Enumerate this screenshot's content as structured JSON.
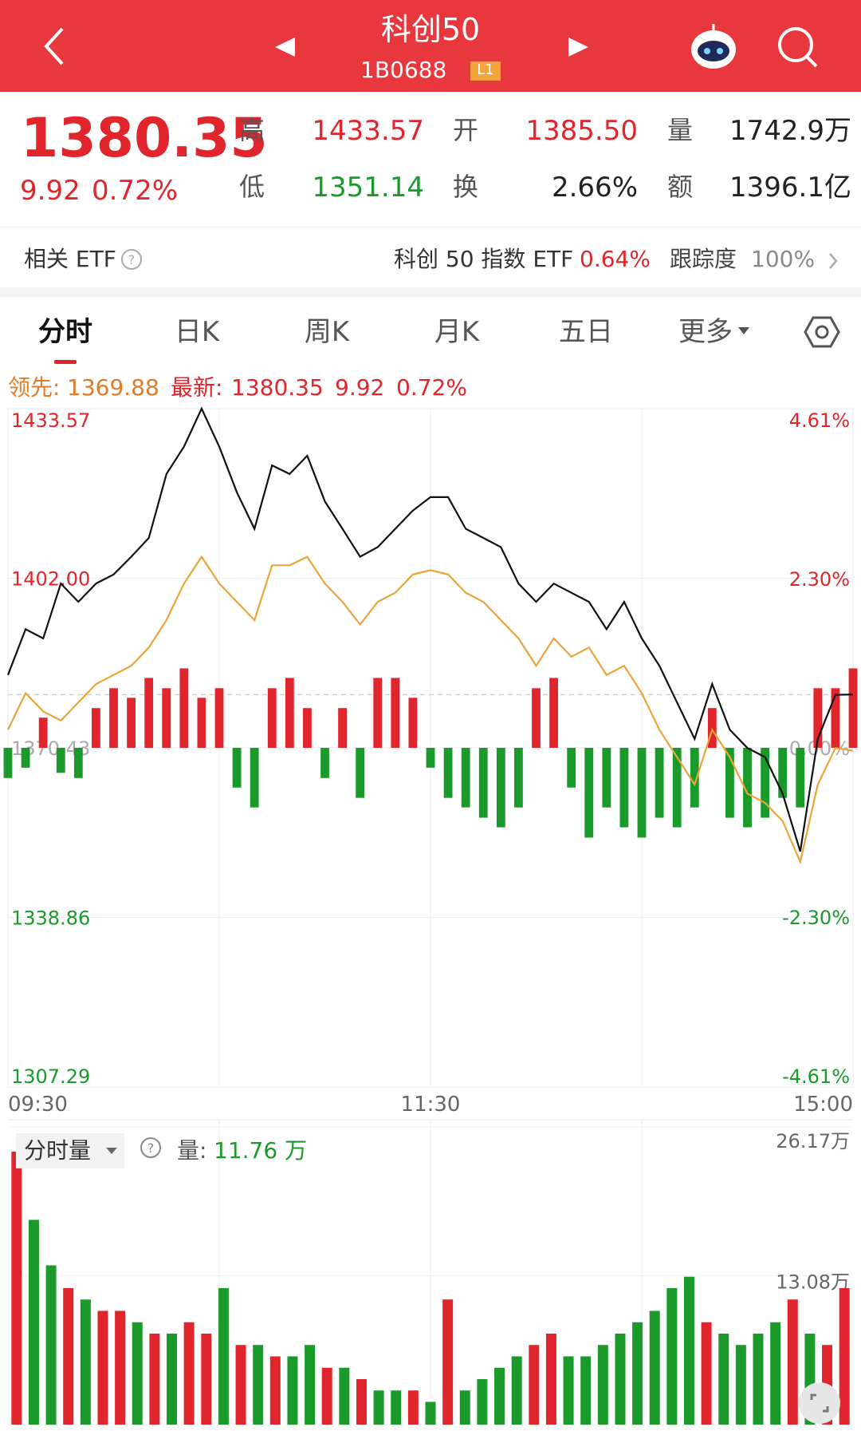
{
  "header": {
    "title": "科创50",
    "code": "1B0688",
    "badge": "L1"
  },
  "quote": {
    "price": "1380.35",
    "change": "9.92",
    "pct": "0.72%",
    "stats": [
      {
        "label": "高",
        "value": "1433.57",
        "color": "#e0252c"
      },
      {
        "label": "开",
        "value": "1385.50",
        "color": "#e0252c"
      },
      {
        "label": "量",
        "value": "1742.9万",
        "color": "#222222"
      },
      {
        "label": "低",
        "value": "1351.14",
        "color": "#1a9a2b"
      },
      {
        "label": "换",
        "value": "2.66%",
        "color": "#222222"
      },
      {
        "label": "额",
        "value": "1396.1亿",
        "color": "#222222"
      }
    ]
  },
  "etf": {
    "label": "相关 ETF",
    "name": "科创 50 指数 ETF",
    "pct": "0.64%",
    "track_label": "跟踪度",
    "track": "100%"
  },
  "tabs": [
    "分时",
    "日K",
    "周K",
    "月K",
    "五日",
    "更多"
  ],
  "legend": {
    "lead_label": "领先:",
    "lead": "1369.88",
    "last_label": "最新:",
    "last": "1380.35",
    "change": "9.92",
    "pct": "0.72%"
  },
  "volume_header": {
    "mode": "分时量",
    "label": "量:",
    "value": "11.76 万"
  },
  "chart_data": [
    {
      "type": "line",
      "categories": [
        "09:30",
        null,
        null,
        null,
        null,
        null,
        null,
        null,
        null,
        null,
        null,
        null,
        null,
        null,
        null,
        null,
        null,
        null,
        null,
        null,
        null,
        null,
        null,
        null,
        "11:30",
        null,
        null,
        null,
        null,
        null,
        null,
        null,
        null,
        null,
        null,
        null,
        null,
        null,
        null,
        null,
        null,
        null,
        null,
        null,
        null,
        null,
        null,
        null,
        "15:00"
      ],
      "ylim": [
        1307.29,
        1433.57
      ],
      "yticks": [
        1307.29,
        1338.86,
        1370.43,
        {
          "value": 1402,
          "label": "1402.00"
        },
        1433.57
      ],
      "y2lim": [
        -4.61,
        4.61
      ],
      "y2ticks": [
        {
          "value": -4.61,
          "label": "-4.61%"
        },
        {
          "value": -2.3,
          "label": "-2.30%"
        },
        {
          "value": 0,
          "label": "0.00%"
        },
        {
          "value": 2.3,
          "label": "2.30%"
        },
        {
          "value": 4.61,
          "label": "4.61%"
        }
      ],
      "ref_line": 1380.35,
      "up_color": "#e0252c",
      "down_color": "#1a9a2b",
      "series": [
        {
          "color": "#111111",
          "values": [
            1384,
            1392.5,
            1390.8,
            1401,
            1397.6,
            1401,
            1402.7,
            1406,
            1409.5,
            1421.4,
            1426.5,
            1433.57,
            1426.5,
            1418,
            1411.2,
            1423,
            1421.4,
            1424.8,
            1416.3,
            1411.2,
            1406,
            1407.8,
            1411.2,
            1414.6,
            1417.1,
            1417.1,
            1411.2,
            1409.5,
            1407.8,
            1401,
            1397.6,
            1401,
            1399.3,
            1397.6,
            1392.5,
            1397.6,
            1390.8,
            1385.7,
            1378.9,
            1372.1,
            1382.3,
            1373.8,
            1370.4,
            1368.7,
            1361.9,
            1351.14,
            1372.1,
            1380.3,
            1380.35
          ]
        },
        {
          "color": "#eba43a",
          "values": [
            1373.8,
            1380.6,
            1377.2,
            1375.5,
            1378.9,
            1382.3,
            1384,
            1385.7,
            1389.1,
            1394.2,
            1401,
            1406,
            1401,
            1397.6,
            1394.2,
            1404.4,
            1404.4,
            1406,
            1401,
            1397.6,
            1393.4,
            1397.6,
            1399.3,
            1402.7,
            1403.5,
            1402.7,
            1399.3,
            1397.6,
            1394.2,
            1390.8,
            1385.7,
            1390.8,
            1387.4,
            1389.1,
            1384,
            1385.7,
            1380.6,
            1373.8,
            1368.7,
            1363.6,
            1373.8,
            1368.7,
            1361.9,
            1360.2,
            1356.8,
            1349.2,
            1363.6,
            1370.4,
            1369.88
          ]
        },
        {
          "type": "bar",
          "axis": "y2",
          "values": [
            -0.41,
            -0.27,
            0.41,
            -0.34,
            -0.41,
            0.54,
            0.81,
            0.68,
            0.95,
            0.81,
            1.08,
            0.68,
            0.81,
            -0.54,
            -0.81,
            0.81,
            0.95,
            0.54,
            -0.41,
            0.54,
            -0.68,
            0.95,
            0.95,
            0.68,
            -0.27,
            -0.68,
            -0.81,
            -0.95,
            -1.08,
            -0.81,
            0.81,
            0.95,
            -0.54,
            -1.22,
            -0.81,
            -1.08,
            -1.22,
            -0.95,
            -1.08,
            -0.81,
            0.54,
            -0.95,
            -1.08,
            -0.95,
            -0.68,
            -0.81,
            0.81,
            0.81,
            1.08
          ]
        }
      ]
    },
    {
      "type": "bar",
      "ylim": [
        0,
        26.17
      ],
      "yticks": [
        {
          "value": 13.08,
          "label": "13.08万"
        },
        {
          "value": 26.17,
          "label": "26.17万"
        }
      ],
      "values": [
        24,
        18,
        14,
        12,
        11,
        10,
        10,
        9,
        8,
        8,
        9,
        8,
        12,
        7,
        7,
        6,
        6,
        7,
        5,
        5,
        4,
        3,
        3,
        3,
        2,
        11,
        3,
        4,
        5,
        6,
        7,
        8,
        6,
        6,
        7,
        8,
        9,
        10,
        12,
        13,
        9,
        8,
        7,
        8,
        9,
        11,
        8,
        7,
        12
      ],
      "colors": [
        "#e0252c",
        "#1a9a2b",
        "#1a9a2b",
        "#e0252c",
        "#1a9a2b",
        "#e0252c",
        "#e0252c",
        "#1a9a2b",
        "#e0252c",
        "#1a9a2b",
        "#e0252c",
        "#e0252c",
        "#1a9a2b",
        "#e0252c",
        "#1a9a2b",
        "#e0252c",
        "#1a9a2b",
        "#1a9a2b",
        "#e0252c",
        "#1a9a2b",
        "#e0252c",
        "#1a9a2b",
        "#1a9a2b",
        "#e0252c",
        "#1a9a2b",
        "#e0252c",
        "#1a9a2b",
        "#1a9a2b",
        "#1a9a2b",
        "#1a9a2b",
        "#e0252c",
        "#e0252c",
        "#1a9a2b",
        "#1a9a2b",
        "#1a9a2b",
        "#1a9a2b",
        "#1a9a2b",
        "#1a9a2b",
        "#1a9a2b",
        "#1a9a2b",
        "#e0252c",
        "#1a9a2b",
        "#1a9a2b",
        "#1a9a2b",
        "#1a9a2b",
        "#e0252c",
        "#1a9a2b",
        "#e0252c",
        "#e0252c"
      ]
    }
  ]
}
